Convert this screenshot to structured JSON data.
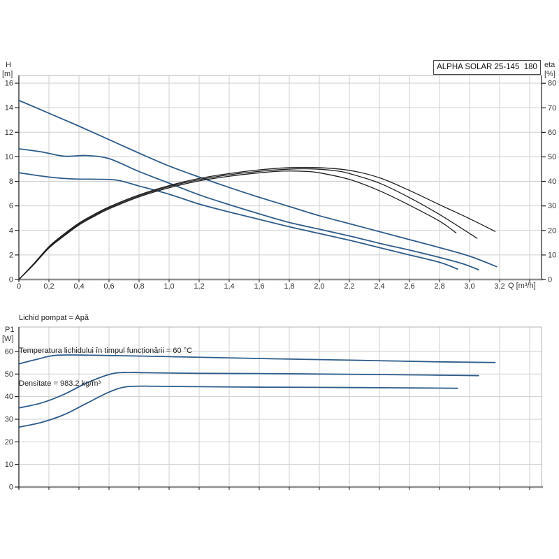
{
  "colors": {
    "curve_blue": "#2e5c8a",
    "curve_black": "#1f1f1f",
    "grid": "#cfcfcf",
    "axis_dark": "#222222",
    "axis_baseline": "#8f8f8f",
    "border_gray": "#b5b5b5",
    "text": "#333333"
  },
  "labels": {
    "h_name": "H",
    "h_unit": "[m]",
    "eta_name": "eta",
    "eta_unit": "[%]",
    "p1_name": "P1",
    "p1_unit": "[W]",
    "q_label": "Q [m³/h]"
  },
  "annotations": {
    "lines": [
      "Lichid pompat = Apă",
      "Temperatura lichidului în timpul funcționării = 60 °C",
      "Densitate = 983.2 kg/m³"
    ]
  },
  "chart_data": [
    {
      "id": "hq",
      "type": "line",
      "title": "ALPHA SOLAR 25-145  180",
      "xlabel": "Q [m³/h]",
      "ylabel_left": "H [m]",
      "ylabel_right": "eta [%]",
      "xlim": [
        0,
        3.48
      ],
      "ylim_left": [
        0,
        16.63
      ],
      "ylim_right": [
        0,
        83.2
      ],
      "grid": true,
      "legend": "none",
      "x_tick_step": 0.2,
      "x_tick_labels": [
        "0",
        "0,2",
        "0,4",
        "0,6",
        "0,8",
        "1,0",
        "1,2",
        "1,4",
        "1,6",
        "1,8",
        "2,0",
        "2,2",
        "2,4",
        "2,6",
        "2,8",
        "3,0",
        "3,2"
      ],
      "y_left_ticks": [
        0,
        2,
        4,
        6,
        8,
        10,
        12,
        14,
        16
      ],
      "y_right_ticks": [
        0,
        10,
        20,
        30,
        40,
        50,
        60,
        70,
        80
      ],
      "series": [
        {
          "name": "head-speed-3",
          "axis": "left",
          "color": "#2e5c8a",
          "width": 1.8,
          "points": [
            [
              0,
              14.6
            ],
            [
              0.2,
              13.55
            ],
            [
              0.4,
              12.5
            ],
            [
              0.6,
              11.4
            ],
            [
              0.8,
              10.3
            ],
            [
              1.0,
              9.25
            ],
            [
              1.2,
              8.35
            ],
            [
              1.4,
              7.5
            ],
            [
              1.6,
              6.7
            ],
            [
              1.8,
              5.95
            ],
            [
              2.0,
              5.2
            ],
            [
              2.2,
              4.55
            ],
            [
              2.4,
              3.9
            ],
            [
              2.6,
              3.25
            ],
            [
              2.8,
              2.6
            ],
            [
              3.0,
              1.9
            ],
            [
              3.18,
              1.05
            ]
          ]
        },
        {
          "name": "head-speed-2",
          "axis": "left",
          "color": "#2e5c8a",
          "width": 1.8,
          "points": [
            [
              0,
              10.65
            ],
            [
              0.15,
              10.4
            ],
            [
              0.3,
              10.05
            ],
            [
              0.45,
              10.1
            ],
            [
              0.6,
              9.85
            ],
            [
              0.8,
              8.8
            ],
            [
              1.0,
              7.85
            ],
            [
              1.2,
              6.9
            ],
            [
              1.4,
              6.1
            ],
            [
              1.6,
              5.35
            ],
            [
              1.8,
              4.65
            ],
            [
              2.0,
              4.1
            ],
            [
              2.2,
              3.55
            ],
            [
              2.4,
              2.95
            ],
            [
              2.6,
              2.4
            ],
            [
              2.8,
              1.8
            ],
            [
              2.95,
              1.3
            ],
            [
              3.06,
              0.8
            ]
          ]
        },
        {
          "name": "head-speed-1",
          "axis": "left",
          "color": "#2e5c8a",
          "width": 1.8,
          "points": [
            [
              0,
              8.7
            ],
            [
              0.2,
              8.35
            ],
            [
              0.35,
              8.2
            ],
            [
              0.5,
              8.17
            ],
            [
              0.65,
              8.1
            ],
            [
              0.8,
              7.62
            ],
            [
              1.0,
              6.95
            ],
            [
              1.2,
              6.15
            ],
            [
              1.4,
              5.5
            ],
            [
              1.6,
              4.9
            ],
            [
              1.8,
              4.3
            ],
            [
              2.0,
              3.75
            ],
            [
              2.2,
              3.2
            ],
            [
              2.4,
              2.6
            ],
            [
              2.6,
              2.0
            ],
            [
              2.8,
              1.4
            ],
            [
              2.92,
              0.85
            ]
          ]
        },
        {
          "name": "eta-speed-3",
          "axis": "right",
          "color": "#1f1f1f",
          "width": 1.3,
          "points": [
            [
              0,
              0
            ],
            [
              0.1,
              6.5
            ],
            [
              0.2,
              13.4
            ],
            [
              0.3,
              18.5
            ],
            [
              0.4,
              23
            ],
            [
              0.5,
              26.5
            ],
            [
              0.6,
              29.6
            ],
            [
              0.8,
              34.5
            ],
            [
              1.0,
              38.3
            ],
            [
              1.2,
              41.2
            ],
            [
              1.4,
              43.2
            ],
            [
              1.6,
              44.7
            ],
            [
              1.8,
              45.6
            ],
            [
              2.0,
              45.6
            ],
            [
              2.2,
              44.5
            ],
            [
              2.4,
              41.5
            ],
            [
              2.6,
              36.3
            ],
            [
              2.8,
              30.5
            ],
            [
              3.0,
              24.8
            ],
            [
              3.17,
              19.6
            ]
          ]
        },
        {
          "name": "eta-speed-2",
          "axis": "right",
          "color": "#1f1f1f",
          "width": 1.3,
          "points": [
            [
              0,
              0
            ],
            [
              0.1,
              6.3
            ],
            [
              0.2,
              13.1
            ],
            [
              0.3,
              18.1
            ],
            [
              0.4,
              22.6
            ],
            [
              0.5,
              26.1
            ],
            [
              0.6,
              29.2
            ],
            [
              0.8,
              34.1
            ],
            [
              1.0,
              37.9
            ],
            [
              1.2,
              40.7
            ],
            [
              1.4,
              42.7
            ],
            [
              1.6,
              44.1
            ],
            [
              1.8,
              45.0
            ],
            [
              1.95,
              45.1
            ],
            [
              2.1,
              44.4
            ],
            [
              2.2,
              43.2
            ],
            [
              2.4,
              39.3
            ],
            [
              2.6,
              33.4
            ],
            [
              2.8,
              26.5
            ],
            [
              3.05,
              16.8
            ]
          ]
        },
        {
          "name": "eta-speed-1",
          "axis": "right",
          "color": "#1f1f1f",
          "width": 1.3,
          "points": [
            [
              0,
              0
            ],
            [
              0.1,
              6.1
            ],
            [
              0.2,
              12.8
            ],
            [
              0.3,
              17.7
            ],
            [
              0.4,
              22.2
            ],
            [
              0.5,
              25.7
            ],
            [
              0.6,
              28.8
            ],
            [
              0.8,
              33.7
            ],
            [
              1.0,
              37.4
            ],
            [
              1.2,
              40.2
            ],
            [
              1.4,
              42.1
            ],
            [
              1.6,
              43.5
            ],
            [
              1.75,
              44.2
            ],
            [
              1.9,
              44.1
            ],
            [
              2.0,
              43.5
            ],
            [
              2.2,
              40.8
            ],
            [
              2.4,
              36.2
            ],
            [
              2.6,
              30.3
            ],
            [
              2.8,
              23.8
            ],
            [
              2.91,
              19.0
            ]
          ]
        }
      ]
    },
    {
      "id": "p1",
      "type": "line",
      "title": "",
      "xlabel": "",
      "ylabel_left": "P1 [W]",
      "xlim": [
        0,
        3.48
      ],
      "ylim_left": [
        0,
        70.8
      ],
      "grid": true,
      "legend": "none",
      "x_tick_step": 0.2,
      "x_tick_labels": [],
      "y_left_ticks": [
        0,
        10,
        20,
        30,
        40,
        50,
        60
      ],
      "y_right_ticks": [],
      "series": [
        {
          "name": "p1-speed-3",
          "axis": "left",
          "color": "#2e5c8a",
          "width": 1.8,
          "points": [
            [
              0,
              54.5
            ],
            [
              0.12,
              56.5
            ],
            [
              0.25,
              58.3
            ],
            [
              0.5,
              58.3
            ],
            [
              1.0,
              57.7
            ],
            [
              1.5,
              57.0
            ],
            [
              2.0,
              56.4
            ],
            [
              2.4,
              55.9
            ],
            [
              2.8,
              55.4
            ],
            [
              3.17,
              55.1
            ]
          ]
        },
        {
          "name": "p1-speed-2",
          "axis": "left",
          "color": "#2e5c8a",
          "width": 1.8,
          "points": [
            [
              0,
              35
            ],
            [
              0.15,
              37.2
            ],
            [
              0.3,
              41
            ],
            [
              0.45,
              46
            ],
            [
              0.6,
              49.8
            ],
            [
              0.7,
              50.7
            ],
            [
              0.85,
              50.6
            ],
            [
              1.2,
              50.3
            ],
            [
              1.6,
              50.2
            ],
            [
              2.0,
              50.0
            ],
            [
              2.5,
              49.7
            ],
            [
              2.8,
              49.5
            ],
            [
              3.06,
              49.3
            ]
          ]
        },
        {
          "name": "p1-speed-1",
          "axis": "left",
          "color": "#2e5c8a",
          "width": 1.8,
          "points": [
            [
              0,
              26.5
            ],
            [
              0.15,
              28.6
            ],
            [
              0.3,
              32
            ],
            [
              0.45,
              37
            ],
            [
              0.6,
              42
            ],
            [
              0.72,
              44.4
            ],
            [
              0.9,
              44.6
            ],
            [
              1.2,
              44.4
            ],
            [
              1.6,
              44.2
            ],
            [
              2.0,
              44.1
            ],
            [
              2.5,
              43.9
            ],
            [
              2.92,
              43.7
            ]
          ]
        }
      ]
    }
  ]
}
